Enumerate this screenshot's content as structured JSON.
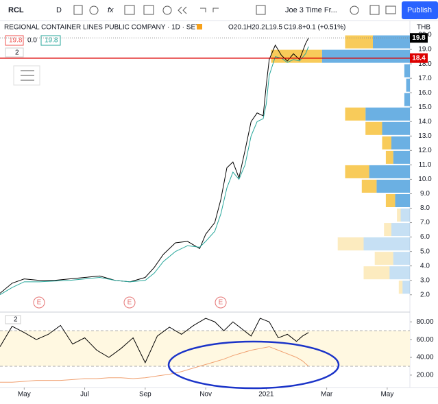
{
  "toolbar": {
    "symbol": "RCL",
    "interval": "D",
    "layout": "Joe 3 Time Fr...",
    "publish": "Publish"
  },
  "legend": {
    "name": "REGIONAL CONTAINER LINES PUBLIC COMPANY · 1D · SET",
    "open": "O20.1",
    "high": "H20.2",
    "low": "L19.5",
    "close": "C19.8",
    "change": "+0.1 (+0.51%)",
    "inputs": [
      "19.8",
      "0.0",
      "19.8"
    ],
    "study_count": "2",
    "pane_count": "2",
    "earnings": [
      "E",
      "E",
      "E"
    ]
  },
  "chart_data": {
    "type": "line",
    "currency": "THB",
    "last_price": 19.8,
    "line_price": 18.4,
    "xlim": [
      -0.8,
      12.75
    ],
    "xticks": [
      {
        "value": 0,
        "label": "May"
      },
      {
        "value": 2,
        "label": "Jul"
      },
      {
        "value": 4,
        "label": "Sep"
      },
      {
        "value": 6,
        "label": "Nov"
      },
      {
        "value": 8,
        "label": "2021"
      },
      {
        "value": 10,
        "label": "Mar"
      },
      {
        "value": 12,
        "label": "May"
      }
    ],
    "ylim": [
      0.8,
      21
    ],
    "yticks": [
      {
        "value": 2,
        "label": "2.0"
      },
      {
        "value": 3,
        "label": "3.0"
      },
      {
        "value": 4,
        "label": "4.0"
      },
      {
        "value": 5,
        "label": "5.0"
      },
      {
        "value": 6,
        "label": "6.0"
      },
      {
        "value": 7,
        "label": "7.0"
      },
      {
        "value": 8,
        "label": "8.0"
      },
      {
        "value": 9,
        "label": "9.0"
      },
      {
        "value": 10,
        "label": "10.0"
      },
      {
        "value": 11,
        "label": "11.0"
      },
      {
        "value": 12,
        "label": "12.0"
      },
      {
        "value": 13,
        "label": "13.0"
      },
      {
        "value": 14,
        "label": "14.0"
      },
      {
        "value": 15,
        "label": "15.0"
      },
      {
        "value": 16,
        "label": "16.0"
      },
      {
        "value": 17,
        "label": "17.0"
      },
      {
        "value": 18,
        "label": "18.0"
      },
      {
        "value": 19,
        "label": "19.0"
      },
      {
        "value": 20,
        "label": "20.0"
      }
    ],
    "x": [
      -0.8,
      -0.4,
      0,
      0.5,
      1,
      1.5,
      2,
      2.5,
      3,
      3.5,
      4,
      4.3,
      4.6,
      5,
      5.4,
      5.8,
      6,
      6.3,
      6.5,
      6.7,
      6.9,
      7.1,
      7.3,
      7.5,
      7.7,
      7.9,
      8.0,
      8.1,
      8.3,
      8.5,
      8.7,
      8.9,
      9.1,
      9.3,
      9.4
    ],
    "series": [
      {
        "color": "#000000",
        "values": [
          2.1,
          2.8,
          3.1,
          3.0,
          3.0,
          3.1,
          3.2,
          3.3,
          3.0,
          2.9,
          3.2,
          3.9,
          4.8,
          5.6,
          5.7,
          5.2,
          6.2,
          7.0,
          8.6,
          10.8,
          11.2,
          10.1,
          12.0,
          14.0,
          14.6,
          14.4,
          16.5,
          18.3,
          19.3,
          18.6,
          18.2,
          18.7,
          18.3,
          19.4,
          19.8
        ]
      },
      {
        "color": "#26a69a",
        "values": [
          2.0,
          2.5,
          2.9,
          2.9,
          2.95,
          3.0,
          3.1,
          3.2,
          3.0,
          2.9,
          3.0,
          3.5,
          4.3,
          5.0,
          5.4,
          5.3,
          5.7,
          6.4,
          7.6,
          9.4,
          10.5,
          10.0,
          11.0,
          13.0,
          14.0,
          14.2,
          15.2,
          17.2,
          18.5,
          18.4,
          18.1,
          18.3,
          18.2,
          18.7,
          19.2
        ]
      }
    ],
    "volume_profile": {
      "xlim": [
        0,
        100
      ],
      "up_color": "#5ba7e0",
      "down_color": "#f7c548",
      "levels": [
        19.5,
        18.5,
        17.5,
        16.5,
        15.5,
        14.5,
        13.5,
        12.5,
        11.5,
        10.5,
        9.5,
        8.5,
        7.5,
        6.5,
        5.5,
        4.5,
        3.5,
        2.5
      ],
      "up": [
        40,
        95,
        6,
        4,
        6,
        48,
        30,
        20,
        18,
        44,
        36,
        16,
        10,
        20,
        50,
        18,
        22,
        8
      ],
      "down": [
        30,
        55,
        0,
        0,
        0,
        22,
        18,
        10,
        8,
        26,
        16,
        10,
        4,
        8,
        28,
        20,
        28,
        4
      ]
    },
    "lower": {
      "ylim": [
        6,
        91
      ],
      "yticks": [
        {
          "value": 20,
          "label": "20.00"
        },
        {
          "value": 40,
          "label": "40.00"
        },
        {
          "value": 60,
          "label": "60.00"
        },
        {
          "value": 80,
          "label": "80.00"
        }
      ],
      "band": [
        30,
        70
      ],
      "x": [
        -0.8,
        -0.4,
        0,
        0.4,
        0.8,
        1.2,
        1.6,
        2,
        2.4,
        2.8,
        3.2,
        3.6,
        4,
        4.4,
        4.8,
        5.2,
        5.6,
        6,
        6.3,
        6.6,
        6.9,
        7.2,
        7.5,
        7.8,
        8.1,
        8.4,
        8.7,
        9.0,
        9.2,
        9.4
      ],
      "series": [
        {
          "color": "#000000",
          "values": [
            52,
            75,
            68,
            60,
            66,
            76,
            55,
            62,
            48,
            40,
            50,
            62,
            34,
            64,
            74,
            66,
            76,
            84,
            80,
            70,
            80,
            72,
            64,
            84,
            80,
            62,
            66,
            58,
            64,
            68
          ]
        },
        {
          "color": "#f0a070",
          "values": [
            12,
            12,
            13,
            14,
            14,
            14,
            15,
            16,
            16,
            17,
            17,
            16,
            17,
            19,
            21,
            24,
            28,
            32,
            35,
            38,
            42,
            45,
            48,
            50,
            52,
            48,
            44,
            40,
            36,
            30
          ]
        }
      ]
    }
  }
}
